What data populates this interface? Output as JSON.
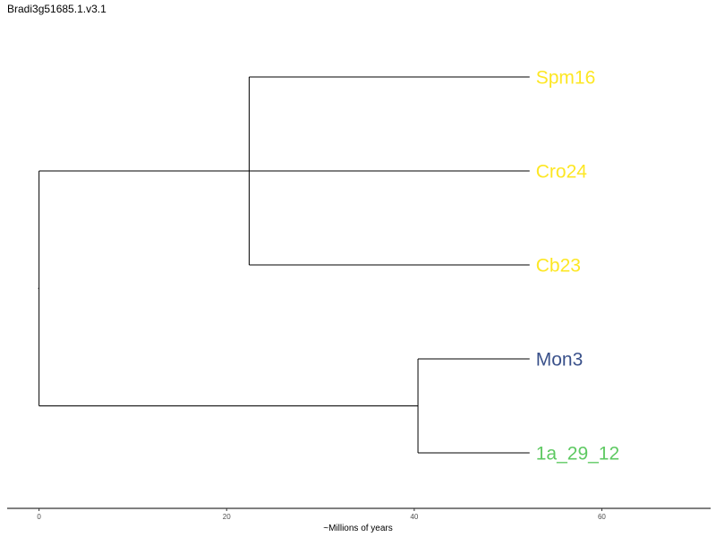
{
  "title": "Bradi3g51685.1.v3.1",
  "chart_data": {
    "type": "dendrogram",
    "title": "Bradi3g51685.1.v3.1",
    "xlabel": "~Millions of years",
    "ylabel": "",
    "xlim": [
      -3.4,
      71.6
    ],
    "x_ticks": [
      0,
      20,
      40,
      60
    ],
    "grid": false,
    "leaves": [
      {
        "name": "Spm16",
        "x": 52.3,
        "color": "#fde725"
      },
      {
        "name": "Cro24",
        "x": 52.3,
        "color": "#fde725"
      },
      {
        "name": "Cb23",
        "x": 52.3,
        "color": "#fde725"
      },
      {
        "name": "Mon3",
        "x": 52.3,
        "color": "#3b528b"
      },
      {
        "name": "1a_29_12",
        "x": 52.3,
        "color": "#5ec962"
      }
    ],
    "clades": [
      {
        "x": 22.4,
        "members": [
          "Spm16",
          "Cro24",
          "Cb23"
        ]
      },
      {
        "x": 40.4,
        "members": [
          "Mon3",
          "1a_29_12"
        ]
      },
      {
        "x": 0,
        "members": [
          "Spm16",
          "Cro24",
          "Cb23",
          "Mon3",
          "1a_29_12"
        ]
      }
    ]
  }
}
